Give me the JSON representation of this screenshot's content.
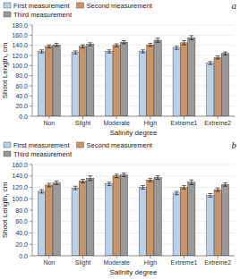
{
  "chart_data": [
    {
      "type": "bar",
      "title": "a",
      "xlabel": "Salinity degree",
      "ylabel": "Shoot Length, cm",
      "categories": [
        "Non",
        "Slight",
        "Moderate",
        "High",
        "Extreme1",
        "Extreme2"
      ],
      "series": [
        {
          "name": "First measurement",
          "color": "#b8d0e8",
          "values": [
            128,
            126,
            128,
            128,
            135,
            105
          ],
          "errors": [
            3,
            3,
            3,
            3,
            3,
            3
          ]
        },
        {
          "name": "Second measurement",
          "color": "#c8956a",
          "values": [
            138,
            138,
            140,
            141,
            145,
            116
          ],
          "errors": [
            3,
            3,
            3,
            3,
            4,
            3
          ]
        },
        {
          "name": "Third measurement",
          "color": "#999999",
          "values": [
            141,
            142,
            146,
            150,
            155,
            124
          ],
          "errors": [
            3,
            3,
            3,
            4,
            4,
            3
          ]
        }
      ],
      "ylim": [
        0,
        180
      ],
      "yticks": [
        {
          "value": 0,
          "label": "0.0"
        },
        {
          "value": 20,
          "label": "20.0"
        },
        {
          "value": 40,
          "label": "40.0"
        },
        {
          "value": 60,
          "label": "60.0"
        },
        {
          "value": 80,
          "label": "80.0"
        },
        {
          "value": 100,
          "label": "100.0"
        },
        {
          "value": 120,
          "label": "120.0"
        },
        {
          "value": 140,
          "label": "140.0"
        },
        {
          "value": 160,
          "label": "160.0"
        },
        {
          "value": 180,
          "label": "180.0"
        }
      ],
      "grid": true,
      "legend": "top"
    },
    {
      "type": "bar",
      "title": "b",
      "xlabel": "Salinity degree",
      "ylabel": "Shoot Length, cm",
      "categories": [
        "Non",
        "Slight",
        "Moderate",
        "High",
        "Extreme1",
        "Extreme2"
      ],
      "series": [
        {
          "name": "First measurement",
          "color": "#b8d0e8",
          "values": [
            113,
            119,
            126,
            120,
            110,
            106
          ],
          "errors": [
            3,
            3,
            3,
            3,
            3,
            3
          ]
        },
        {
          "name": "Second measurement",
          "color": "#c8956a",
          "values": [
            124,
            131,
            140,
            133,
            120,
            116
          ],
          "errors": [
            3,
            3,
            3,
            3,
            3,
            3
          ]
        },
        {
          "name": "Third measurement",
          "color": "#999999",
          "values": [
            128,
            136,
            142,
            137,
            129,
            125
          ],
          "errors": [
            3,
            4,
            3,
            3,
            4,
            3
          ]
        }
      ],
      "ylim": [
        0,
        160
      ],
      "yticks": [
        {
          "value": 0,
          "label": "0.0"
        },
        {
          "value": 20,
          "label": "20.0"
        },
        {
          "value": 40,
          "label": "40.0"
        },
        {
          "value": 60,
          "label": "60.0"
        },
        {
          "value": 80,
          "label": "80.0"
        },
        {
          "value": 100,
          "label": "100.0"
        },
        {
          "value": 120,
          "label": "120.0"
        },
        {
          "value": 140,
          "label": "140.0"
        },
        {
          "value": 160,
          "label": "160.0"
        }
      ],
      "grid": true,
      "legend": "top"
    }
  ]
}
